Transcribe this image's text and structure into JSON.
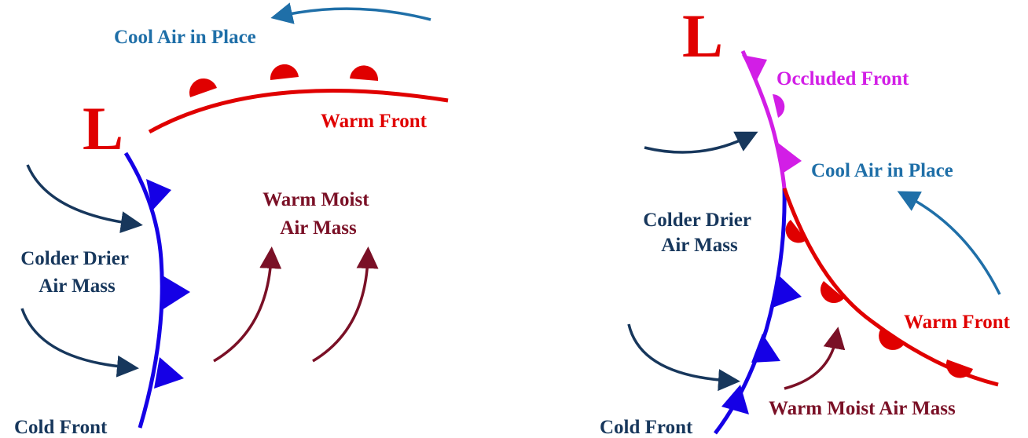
{
  "left_panel": {
    "low_symbol": "L",
    "cool_air": "Cool Air in Place",
    "warm_front": "Warm Front",
    "warm_air_mass": [
      "Warm Moist",
      "Air Mass"
    ],
    "cold_air_mass": [
      "Colder Drier",
      "Air Mass"
    ],
    "cold_front": "Cold Front"
  },
  "right_panel": {
    "low_symbol": "L",
    "occluded_front": "Occluded Front",
    "cool_air": "Cool Air in Place",
    "cold_air_mass": [
      "Colder Drier",
      "Air Mass"
    ],
    "warm_front": "Warm Front",
    "warm_air_mass": "Warm Moist Air Mass",
    "cold_front": "Cold Front"
  }
}
